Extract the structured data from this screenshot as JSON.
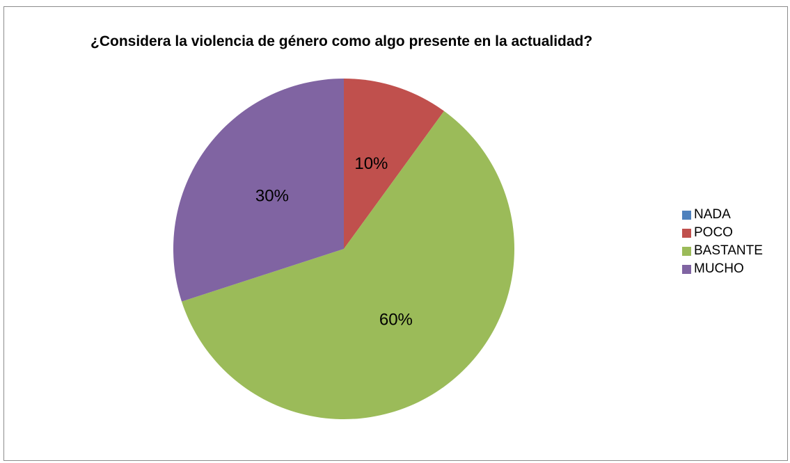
{
  "chart_data": {
    "type": "pie",
    "title": "¿Considera la violencia de género como algo presente en la actualidad?",
    "categories": [
      "NADA",
      "POCO",
      "BASTANTE",
      "MUCHO"
    ],
    "values": [
      0,
      10,
      60,
      30
    ],
    "value_labels": [
      "",
      "10%",
      "60%",
      "30%"
    ],
    "colors": [
      "#4f81bd",
      "#c0504d",
      "#9bbb59",
      "#8064a2"
    ],
    "start_angle_deg": 0,
    "direction": "clockwise",
    "legend_position": "right"
  }
}
